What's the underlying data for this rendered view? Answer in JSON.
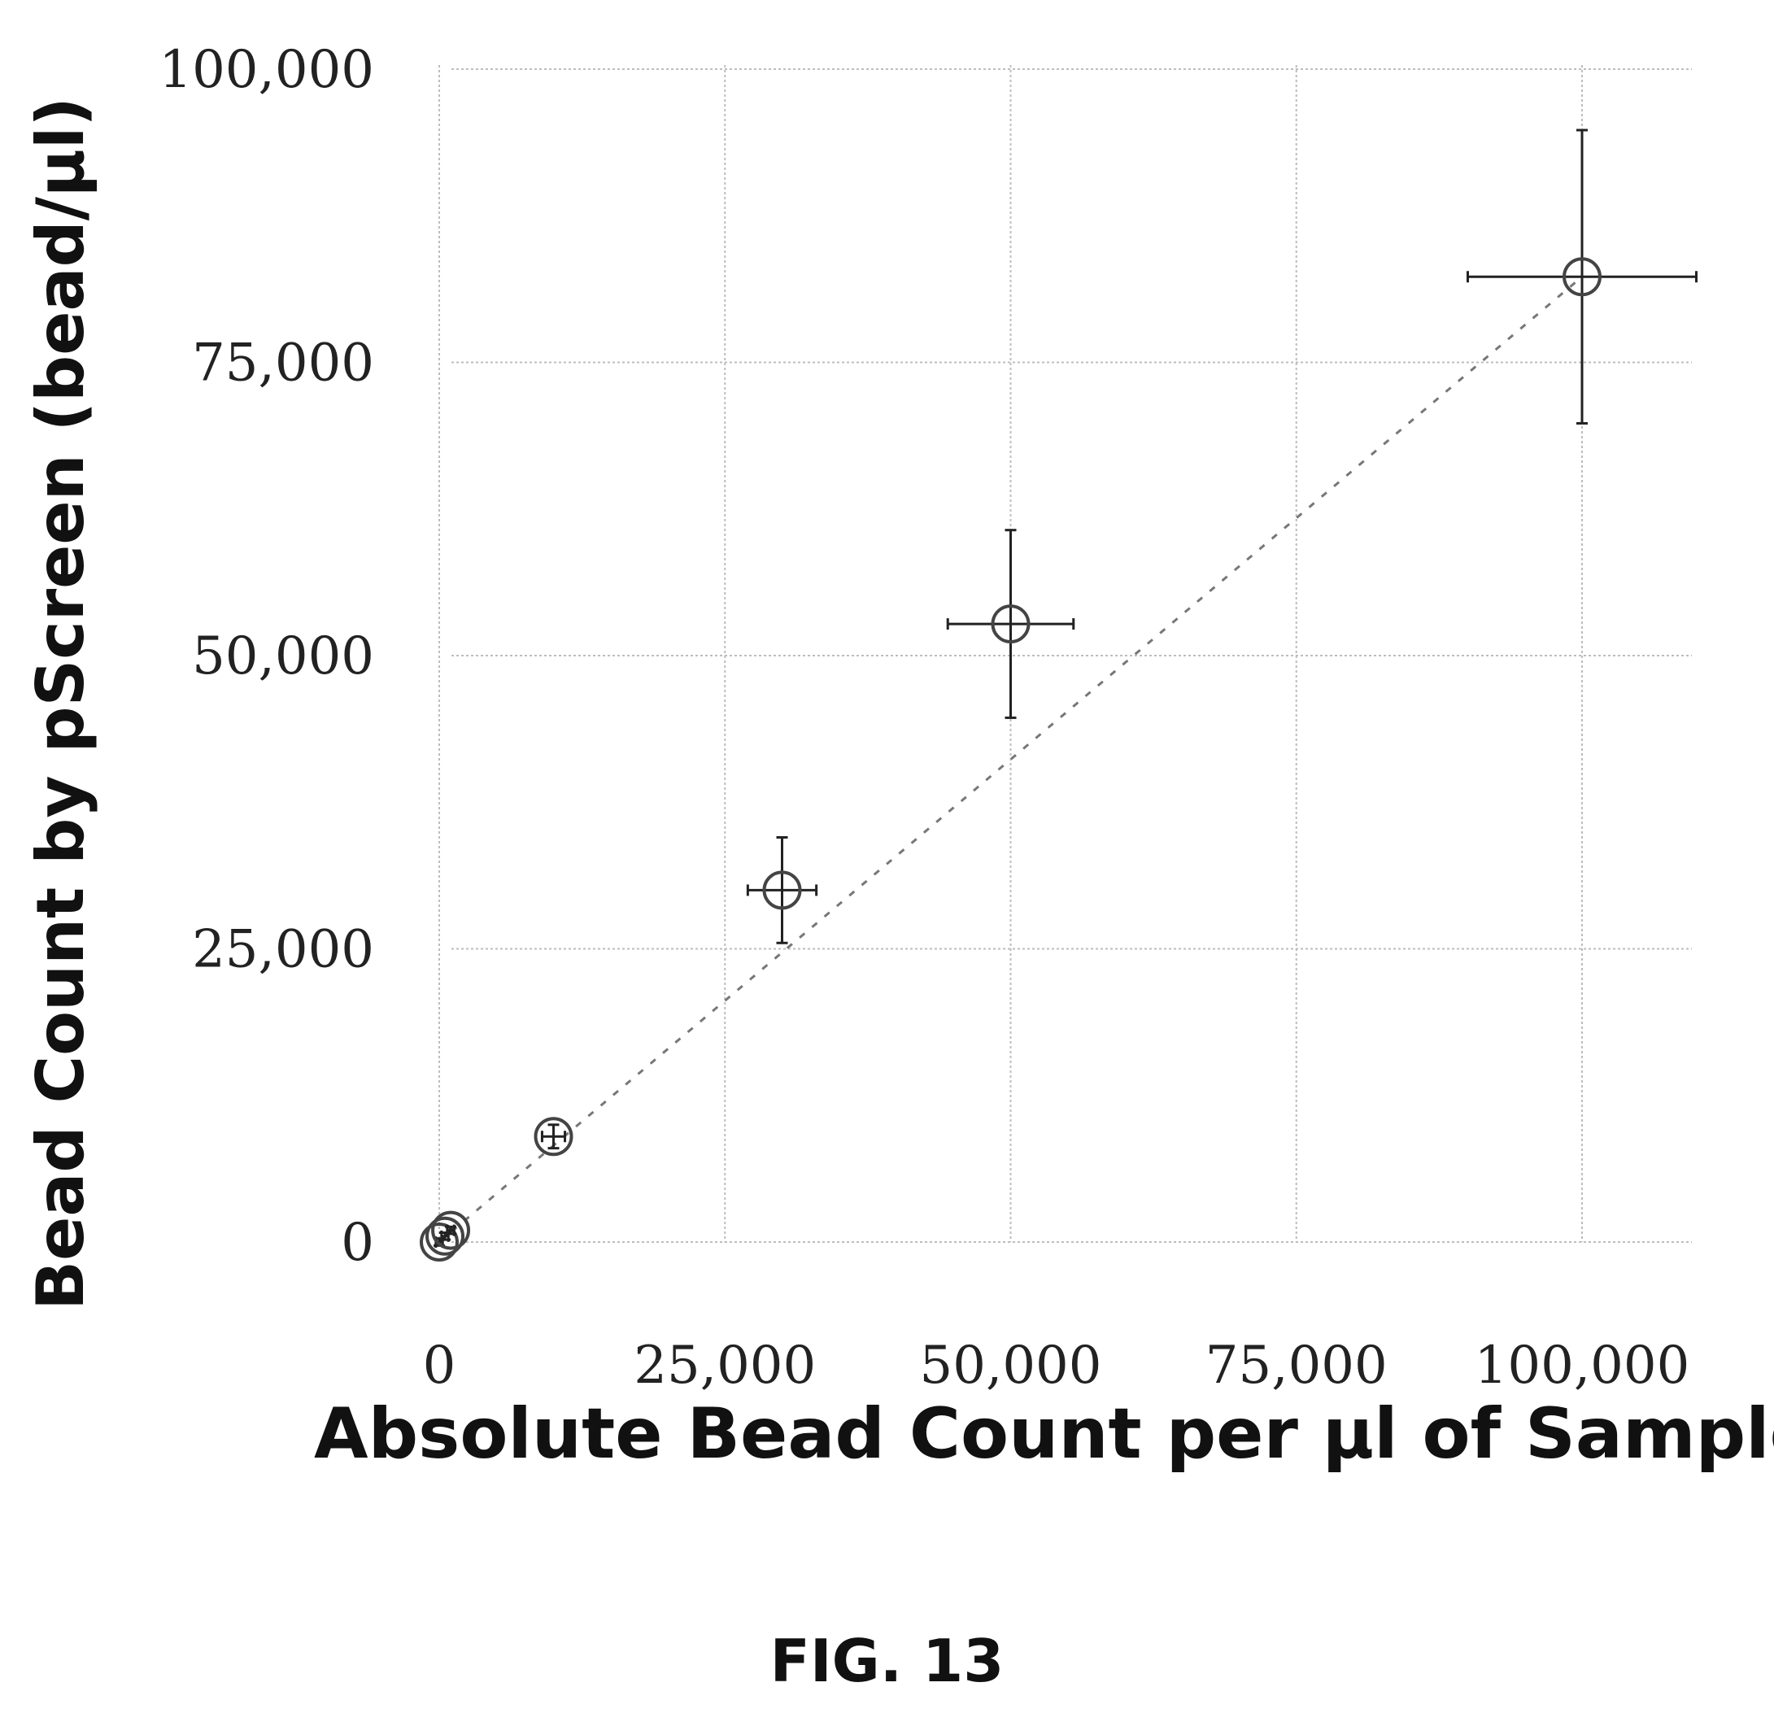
{
  "figure": {
    "caption": "FIG. 13"
  },
  "chart_data": {
    "type": "scatter",
    "xlabel": "Absolute Bead Count per µl of Sample",
    "ylabel": "Bead Count by pScreen  (bead/µl)",
    "xlim": [
      0,
      110000
    ],
    "ylim": [
      0,
      100000
    ],
    "x_ticks": [
      0,
      25000,
      50000,
      75000,
      100000
    ],
    "x_tick_labels": [
      "0",
      "25,000",
      "50,000",
      "75,000",
      "100,000"
    ],
    "y_ticks": [
      0,
      25000,
      50000,
      75000,
      100000
    ],
    "y_tick_labels": [
      "0",
      "25,000",
      "50,000",
      "75,000",
      "100,000"
    ],
    "grid": true,
    "trendline": "dashed",
    "points": [
      {
        "x": 0,
        "y": 0,
        "x_err": 300,
        "y_err": 300
      },
      {
        "x": 500,
        "y": 500,
        "x_err": 300,
        "y_err": 300
      },
      {
        "x": 1000,
        "y": 1000,
        "x_err": 300,
        "y_err": 300
      },
      {
        "x": 10000,
        "y": 9000,
        "x_err": 1000,
        "y_err": 1000
      },
      {
        "x": 30000,
        "y": 30000,
        "x_err": 3000,
        "y_err": 4500
      },
      {
        "x": 50000,
        "y": 52700,
        "x_err": 5500,
        "y_err": 8000
      },
      {
        "x": 100000,
        "y": 82300,
        "x_err": 10000,
        "y_err": 12500
      }
    ]
  }
}
